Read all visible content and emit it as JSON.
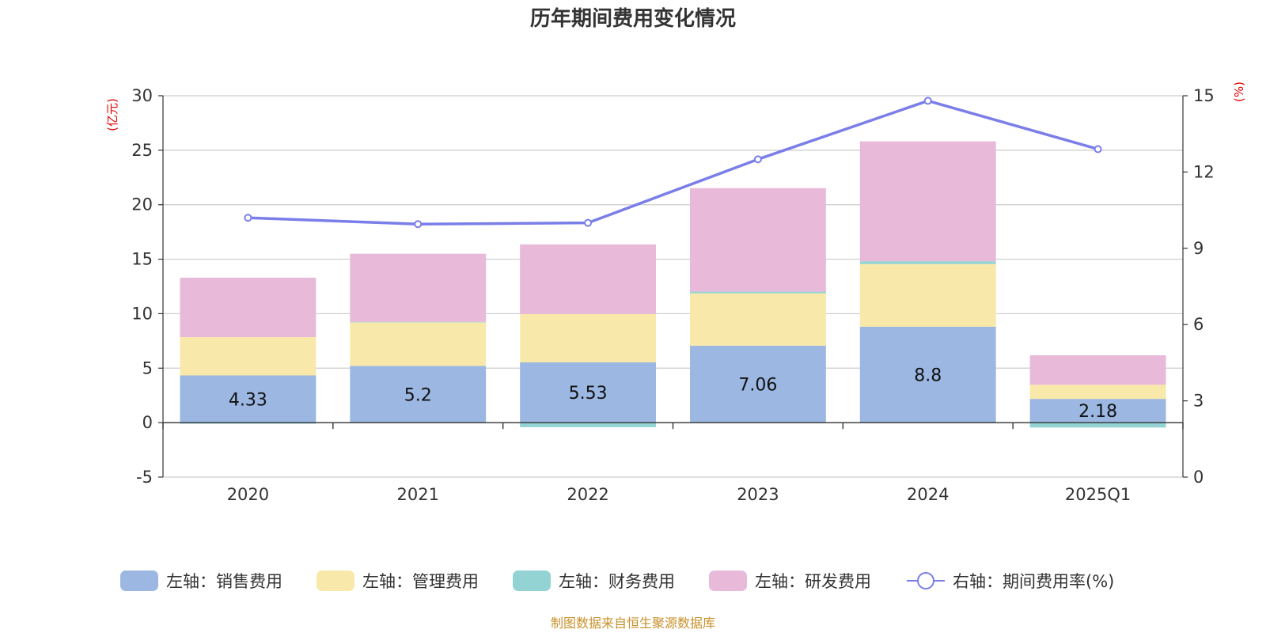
{
  "chart_data": {
    "type": "bar",
    "stacked": true,
    "title": "历年期间费用变化情况",
    "categories": [
      "2020",
      "2021",
      "2022",
      "2023",
      "2024",
      "2025Q1"
    ],
    "left_axis": {
      "unit_label": "(亿元)",
      "ylim": [
        -5,
        30
      ],
      "ticks": [
        "-5",
        "0",
        "5",
        "10",
        "15",
        "20",
        "25",
        "30"
      ]
    },
    "right_axis": {
      "unit_label": "(%)",
      "ylim": [
        0,
        15
      ],
      "ticks": [
        "0",
        "3",
        "6",
        "9",
        "12",
        "15"
      ]
    },
    "series": [
      {
        "name": "左轴：销售费用",
        "axis": "left",
        "color": "#9bb7e2",
        "values": [
          4.33,
          5.2,
          5.53,
          7.06,
          8.8,
          2.18
        ],
        "labels": [
          "4.33",
          "5.2",
          "5.53",
          "7.06",
          "8.8",
          "2.18"
        ]
      },
      {
        "name": "左轴：管理费用",
        "axis": "left",
        "color": "#f8e8a9",
        "values": [
          3.52,
          4.0,
          4.43,
          4.81,
          5.76,
          1.3
        ]
      },
      {
        "name": "左轴：财务费用",
        "axis": "left",
        "color": "#93d3d4",
        "values": [
          -0.1,
          0.05,
          -0.42,
          0.15,
          0.25,
          -0.45
        ]
      },
      {
        "name": "左轴：研发费用",
        "axis": "left",
        "color": "#e8b9d9",
        "values": [
          5.45,
          6.25,
          6.4,
          9.5,
          11.0,
          2.7
        ]
      },
      {
        "name": "右轴：期间费用率(%)",
        "axis": "right",
        "type": "line",
        "color": "#7a7ee8",
        "values": [
          10.2,
          9.95,
          10.0,
          12.5,
          14.8,
          12.9
        ]
      }
    ],
    "source": "制图数据来自恒生聚源数据库"
  }
}
